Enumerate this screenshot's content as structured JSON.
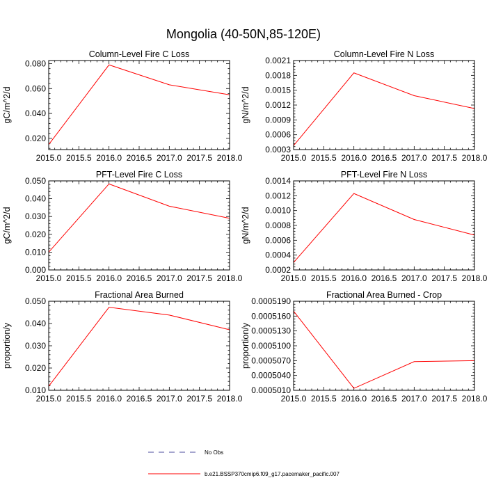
{
  "figure_title": "Mongolia (40-50N,85-120E)",
  "legend": {
    "obs_label": "No Obs",
    "obs_color": "#4b4b9c",
    "model_label": "b.e21.BSSP370cmip6.f09_g17.pacemaker_pacific.007",
    "model_color": "#ff0000"
  },
  "chart_data": [
    {
      "type": "line",
      "title": "Column-Level Fire C Loss",
      "xlabel": "",
      "ylabel": "gC/m^2/d",
      "xlim": [
        2015.0,
        2018.0
      ],
      "ylim": [
        0.011,
        0.0825
      ],
      "xticks": [
        "2015.0",
        "2015.5",
        "2016.0",
        "2016.5",
        "2017.0",
        "2017.5",
        "2018.0"
      ],
      "yticks": [
        "0.020",
        "0.040",
        "0.060",
        "0.080"
      ],
      "series": [
        {
          "color": "#ff0000",
          "x": [
            2015.0,
            2016.0,
            2017.0,
            2018.0
          ],
          "y": [
            0.015,
            0.079,
            0.063,
            0.055
          ]
        }
      ]
    },
    {
      "type": "line",
      "title": "Column-Level Fire N Loss",
      "xlabel": "",
      "ylabel": "gN/m^2/d",
      "xlim": [
        2015.0,
        2018.0
      ],
      "ylim": [
        0.0003,
        0.0021
      ],
      "xticks": [
        "2015.0",
        "2015.5",
        "2016.0",
        "2016.5",
        "2017.0",
        "2017.5",
        "2018.0"
      ],
      "yticks": [
        "0.0003",
        "0.0006",
        "0.0009",
        "0.0012",
        "0.0015",
        "0.0018",
        "0.0021"
      ],
      "series": [
        {
          "color": "#ff0000",
          "x": [
            2015.0,
            2016.0,
            2017.0,
            2018.0
          ],
          "y": [
            0.00038,
            0.00185,
            0.00139,
            0.00113
          ]
        }
      ]
    },
    {
      "type": "line",
      "title": "PFT-Level Fire C Loss",
      "xlabel": "",
      "ylabel": "gC/m^2/d",
      "xlim": [
        2015.0,
        2018.0
      ],
      "ylim": [
        0.0,
        0.05
      ],
      "xticks": [
        "2015.0",
        "2015.5",
        "2016.0",
        "2016.5",
        "2017.0",
        "2017.5",
        "2018.0"
      ],
      "yticks": [
        "0.000",
        "0.010",
        "0.020",
        "0.030",
        "0.040",
        "0.050"
      ],
      "series": [
        {
          "color": "#ff0000",
          "x": [
            2015.0,
            2016.0,
            2017.0,
            2018.0
          ],
          "y": [
            0.01,
            0.0483,
            0.0358,
            0.029
          ]
        }
      ]
    },
    {
      "type": "line",
      "title": "PFT-Level Fire N Loss",
      "xlabel": "",
      "ylabel": "gN/m^2/d",
      "xlim": [
        2015.0,
        2018.0
      ],
      "ylim": [
        0.0002,
        0.0014
      ],
      "xticks": [
        "2015.0",
        "2015.5",
        "2016.0",
        "2016.5",
        "2017.0",
        "2017.5",
        "2018.0"
      ],
      "yticks": [
        "0.0002",
        "0.0004",
        "0.0006",
        "0.0008",
        "0.0010",
        "0.0012",
        "0.0014"
      ],
      "series": [
        {
          "color": "#ff0000",
          "x": [
            2015.0,
            2016.0,
            2017.0,
            2018.0
          ],
          "y": [
            0.0003,
            0.00123,
            0.00088,
            0.00067
          ]
        }
      ]
    },
    {
      "type": "line",
      "title": "Fractional Area Burned",
      "xlabel": "",
      "ylabel": "proportion/y",
      "xlim": [
        2015.0,
        2018.0
      ],
      "ylim": [
        0.01,
        0.05
      ],
      "xticks": [
        "2015.0",
        "2015.5",
        "2016.0",
        "2016.5",
        "2017.0",
        "2017.5",
        "2018.0"
      ],
      "yticks": [
        "0.010",
        "0.020",
        "0.030",
        "0.040",
        "0.050"
      ],
      "series": [
        {
          "color": "#ff0000",
          "x": [
            2015.0,
            2016.0,
            2017.0,
            2018.0
          ],
          "y": [
            0.0118,
            0.0473,
            0.0438,
            0.0372
          ]
        }
      ]
    },
    {
      "type": "line",
      "title": "Fractional Area Burned - Crop",
      "xlabel": "",
      "ylabel": "proportion/y",
      "xlim": [
        2015.0,
        2018.0
      ],
      "ylim": [
        0.000501,
        0.000519
      ],
      "xticks": [
        "2015.0",
        "2015.5",
        "2016.0",
        "2016.5",
        "2017.0",
        "2017.5",
        "2018.0"
      ],
      "yticks": [
        "0.0005010",
        "0.0005040",
        "0.0005070",
        "0.0005100",
        "0.0005130",
        "0.0005160",
        "0.0005190"
      ],
      "series": [
        {
          "color": "#ff0000",
          "x": [
            2015.0,
            2016.0,
            2017.0,
            2018.0
          ],
          "y": [
            0.000517,
            0.0005014,
            0.0005068,
            0.000507
          ]
        }
      ]
    }
  ]
}
